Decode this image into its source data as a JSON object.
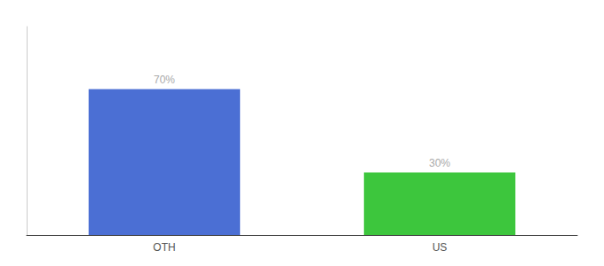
{
  "chart_data": {
    "type": "bar",
    "categories": [
      "OTH",
      "US"
    ],
    "values": [
      70,
      30
    ],
    "value_labels": [
      "70%",
      "30%"
    ],
    "colors": [
      "#4B6FD4",
      "#3DC63D"
    ],
    "ylim": [
      0,
      100
    ],
    "data_labels": true,
    "tick_labels": "x",
    "grid": false
  }
}
